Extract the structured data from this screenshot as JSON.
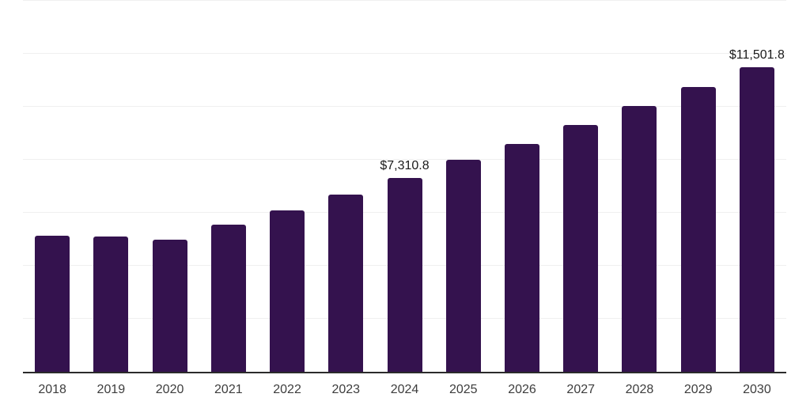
{
  "page": {
    "background": "#ffffff"
  },
  "chart_data": {
    "type": "bar",
    "title": "",
    "xlabel": "",
    "ylabel": "",
    "categories": [
      "2018",
      "2019",
      "2020",
      "2021",
      "2022",
      "2023",
      "2024",
      "2025",
      "2026",
      "2027",
      "2028",
      "2029",
      "2030"
    ],
    "values": [
      5120,
      5105,
      4975,
      5550,
      6090,
      6685,
      7310.8,
      7990,
      8610,
      9300,
      10020,
      10740,
      11501.8
    ],
    "value_labels": {
      "2024": "$7,310.8",
      "2030": "$11,501.8"
    },
    "ylim": [
      0,
      14030
    ],
    "gridline_values": [
      2000,
      4000,
      6000,
      8000,
      10000,
      12000,
      14000
    ],
    "grid": "horizontal-only",
    "legend": "none",
    "colors": {
      "bar": "#34124e",
      "axis_line": "#2b2b2b",
      "gridline": "#f0f0f0",
      "tick_label": "#3d3d3d",
      "value_label": "#1a1a1a"
    }
  }
}
